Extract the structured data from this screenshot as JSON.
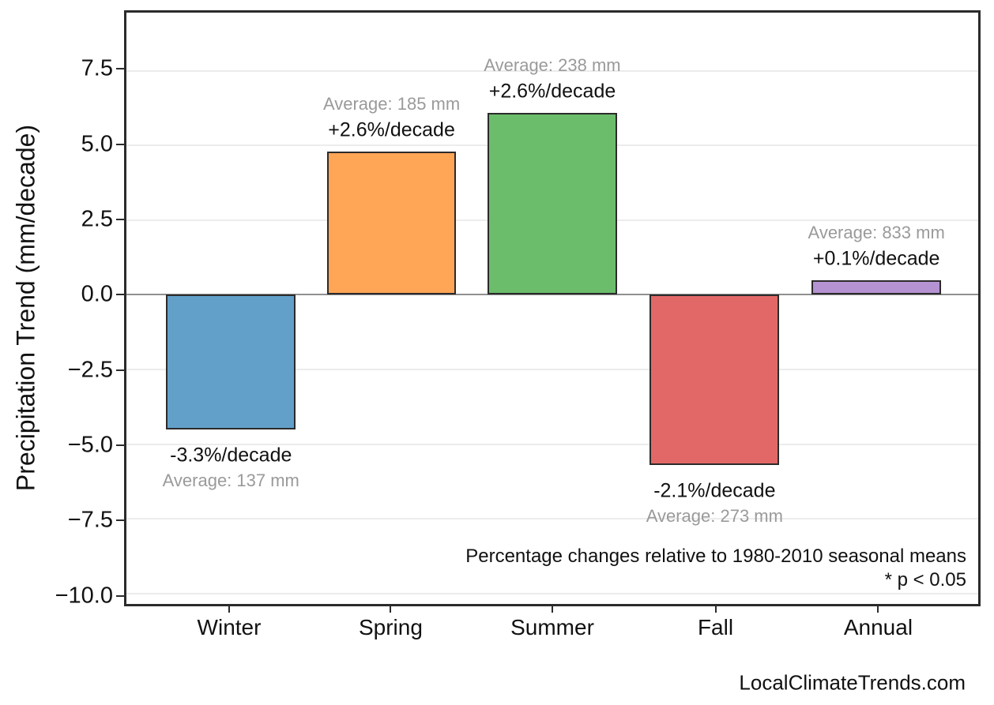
{
  "chart_data": {
    "type": "bar",
    "title": "",
    "xlabel": "",
    "ylabel": "Precipitation Trend (mm/decade)",
    "categories": [
      "Winter",
      "Spring",
      "Summer",
      "Fall",
      "Annual"
    ],
    "values": [
      -4.5,
      4.8,
      6.1,
      -5.7,
      0.5
    ],
    "units": "mm/decade",
    "averages_mm": [
      137,
      185,
      238,
      273,
      833
    ],
    "pct_labels": [
      "-3.3%/decade",
      "+2.6%/decade",
      "+2.6%/decade",
      "-2.1%/decade",
      "+0.1%/decade"
    ],
    "avg_labels": [
      "Average: 137 mm",
      "Average: 185 mm",
      "Average: 238 mm",
      "Average: 273 mm",
      "Average: 833 mm"
    ],
    "bar_colors": [
      "#62a0ca",
      "#ffa556",
      "#6bbc6b",
      "#e26868",
      "#b593d2"
    ],
    "bar_edge_color": "#2b2b2b",
    "y_ticks": [
      {
        "value": 7.5,
        "label": "7.5"
      },
      {
        "value": 5.0,
        "label": "5.0"
      },
      {
        "value": 2.5,
        "label": "2.5"
      },
      {
        "value": 0.0,
        "label": "0.0"
      },
      {
        "value": -2.5,
        "label": "−2.5"
      },
      {
        "value": -5.0,
        "label": "−5.0"
      },
      {
        "value": -7.5,
        "label": "−7.5"
      },
      {
        "value": -10.0,
        "label": "−10.0"
      }
    ],
    "ylim": [
      -10.35,
      9.45
    ],
    "grid": "horizontal",
    "legend": "none",
    "note_line1": "Percentage changes relative to 1980-2010 seasonal means",
    "note_line2": "* p < 0.05",
    "watermark": "LocalClimateTrends.com"
  }
}
